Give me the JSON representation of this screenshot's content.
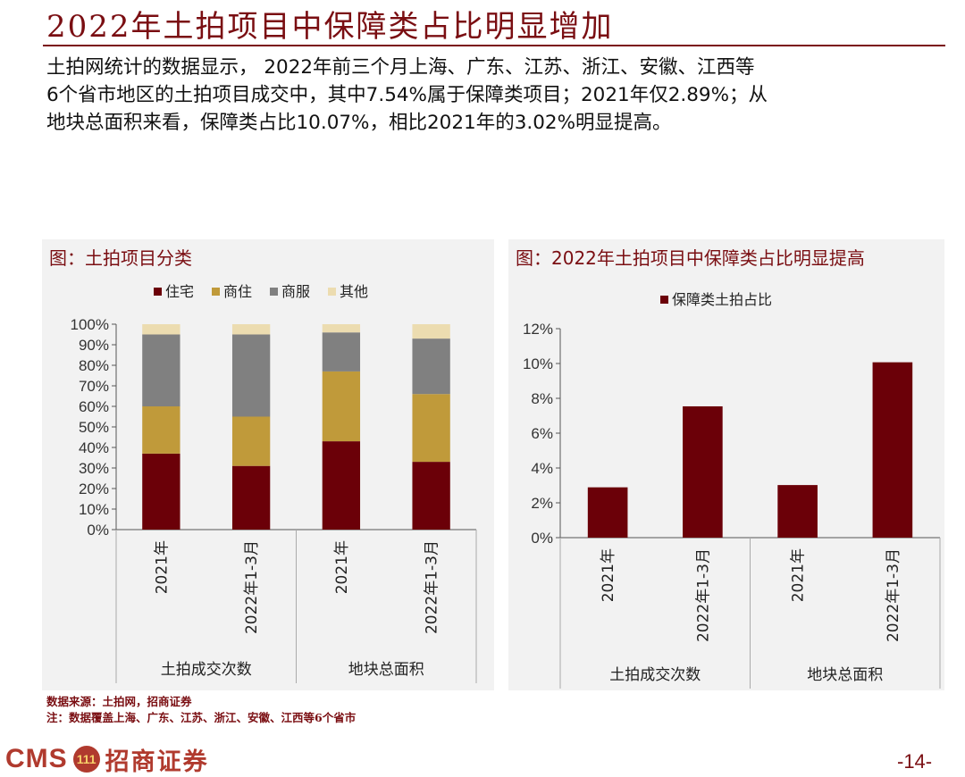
{
  "page": {
    "title": "2022年土拍项目中保障类占比明显增加",
    "body_lines": [
      "土拍网统计的数据显示， 2022年前三个月上海、广东、江苏、浙江、安徽、江西等",
      "6个省市地区的土拍项目成交中，其中7.54%属于保障类项目；2021年仅2.89%；从",
      "地块总面积来看，保障类占比10.07%，相比2021年的3.02%明显提高。"
    ],
    "source": "数据来源：土拍网，招商证券",
    "note": "注：数据覆盖上海、广东、江苏、浙江、安徽、江西等6个省市",
    "page_number": "-14-",
    "logo": {
      "latin": "CMS",
      "badge": "111",
      "chinese": "招商证券"
    }
  },
  "colors": {
    "accent": "#7a0e12",
    "zhuzhai": "#6b0008",
    "shangzhu": "#c09a3a",
    "shangfu": "#808080",
    "qita": "#ecdcb0"
  },
  "chart_data": [
    {
      "type": "bar",
      "stacked": true,
      "panel_title": "图：土拍项目分类",
      "categories": [
        "2021年",
        "2022年1-3月",
        "2021年",
        "2022年1-3月"
      ],
      "groups": [
        {
          "label": "土拍成交次数",
          "categories": [
            "2021年",
            "2022年1-3月"
          ]
        },
        {
          "label": "地块总面积",
          "categories": [
            "2021年",
            "2022年1-3月"
          ]
        }
      ],
      "series": [
        {
          "name": "住宅",
          "color": "#6b0008",
          "values": [
            37,
            31,
            43,
            33
          ]
        },
        {
          "name": "商住",
          "color": "#c09a3a",
          "values": [
            23,
            24,
            34,
            33
          ]
        },
        {
          "name": "商服",
          "color": "#808080",
          "values": [
            35,
            40,
            19,
            27
          ]
        },
        {
          "name": "其他",
          "color": "#ecdcb0",
          "values": [
            5,
            5,
            4,
            7
          ]
        }
      ],
      "ylim": [
        0,
        100
      ],
      "yticks": [
        "0%",
        "10%",
        "20%",
        "30%",
        "40%",
        "50%",
        "60%",
        "70%",
        "80%",
        "90%",
        "100%"
      ],
      "legend_position": "top"
    },
    {
      "type": "bar",
      "panel_title": "图：2022年土拍项目中保障类占比明显提高",
      "categories": [
        "2021年",
        "2022年1-3月",
        "2021年",
        "2022年1-3月"
      ],
      "groups": [
        {
          "label": "土拍成交次数",
          "categories": [
            "2021年",
            "2022年1-3月"
          ]
        },
        {
          "label": "地块总面积",
          "categories": [
            "2021年",
            "2022年1-3月"
          ]
        }
      ],
      "series": [
        {
          "name": "保障类土拍占比",
          "color": "#6b0008",
          "values": [
            2.89,
            7.54,
            3.02,
            10.07
          ]
        }
      ],
      "ylim": [
        0,
        12
      ],
      "yticks": [
        "0%",
        "2%",
        "4%",
        "6%",
        "8%",
        "10%",
        "12%"
      ],
      "legend_position": "top"
    }
  ]
}
